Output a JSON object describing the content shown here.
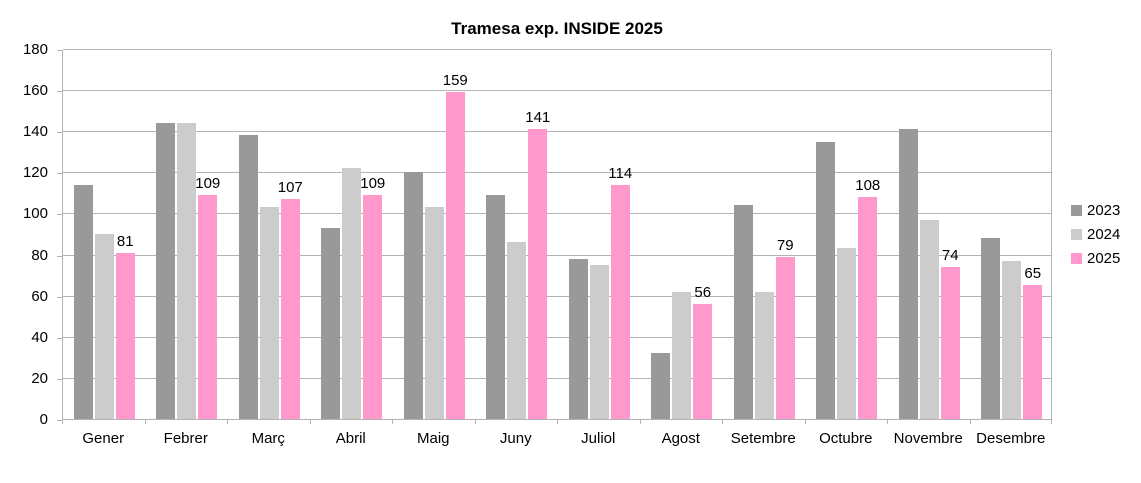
{
  "chart_data": {
    "type": "bar",
    "title": "Tramesa exp. INSIDE 2025",
    "categories": [
      "Gener",
      "Febrer",
      "Març",
      "Abril",
      "Maig",
      "Juny",
      "Juliol",
      "Agost",
      "Setembre",
      "Octubre",
      "Novembre",
      "Desembre"
    ],
    "series": [
      {
        "name": "2023",
        "color": "#999999",
        "data_labels": false,
        "values": [
          114,
          144,
          138,
          93,
          120,
          109,
          78,
          32,
          104,
          135,
          141,
          88
        ]
      },
      {
        "name": "2024",
        "color": "#cccccc",
        "data_labels": false,
        "values": [
          90,
          144,
          103,
          122,
          103,
          86,
          75,
          62,
          62,
          83,
          97,
          77
        ]
      },
      {
        "name": "2025",
        "color": "#ff99cc",
        "data_labels": true,
        "values": [
          81,
          109,
          107,
          109,
          159,
          141,
          114,
          56,
          79,
          108,
          74,
          65
        ]
      }
    ],
    "xlabel": "",
    "ylabel": "",
    "ylim": [
      0,
      180
    ],
    "ytick_step": 20,
    "grid": true,
    "legend_position": "right",
    "colors": {
      "gridline": "#b3b3b3",
      "axis_text": "#000000",
      "background": "#ffffff"
    }
  }
}
